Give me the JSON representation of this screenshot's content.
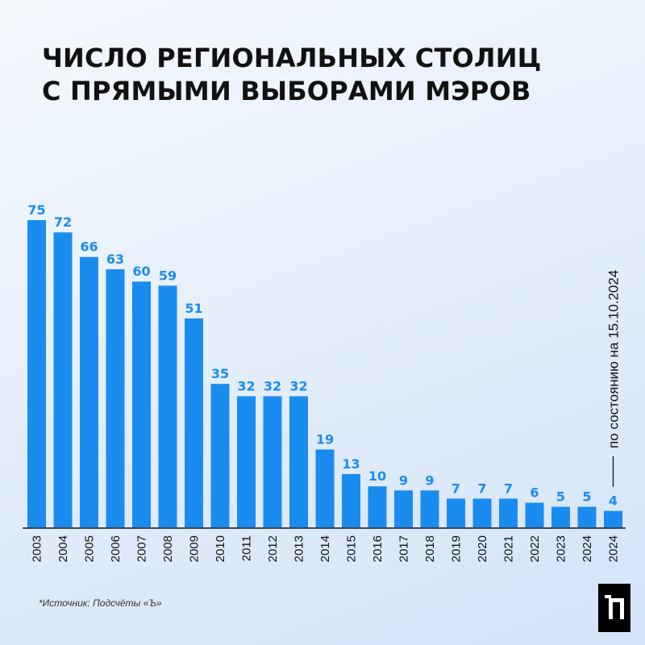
{
  "title_lines": [
    "ЧИСЛО РЕГИОНАЛЬНЫХ СТОЛИЦ",
    "С ПРЯМЫМИ ВЫБОРАМИ МЭРОВ"
  ],
  "source": "*Источник: Подсчёты «Ъ»",
  "colors": {
    "bar": "#1a8cf0",
    "label": "#1a8cf0",
    "axis": "#111111"
  },
  "chart_data": {
    "type": "bar",
    "title": "ЧИСЛО РЕГИОНАЛЬНЫХ СТОЛИЦ С ПРЯМЫМИ ВЫБОРАМИ МЭРОВ",
    "categories": [
      "2003",
      "2004",
      "2005",
      "2006",
      "2007",
      "2008",
      "2009",
      "2010",
      "2011",
      "2012",
      "2013",
      "2014",
      "2015",
      "2016",
      "2017",
      "2018",
      "2019",
      "2020",
      "2021",
      "2022",
      "2023",
      "2024",
      "2024"
    ],
    "values": [
      75,
      72,
      66,
      63,
      60,
      59,
      51,
      35,
      32,
      32,
      32,
      19,
      13,
      10,
      9,
      9,
      7,
      7,
      7,
      6,
      5,
      5,
      4
    ],
    "ylim": [
      0,
      75
    ],
    "annotation": "по состоянию на 15.10.2024",
    "annotation_target": 22,
    "grid": false,
    "legend": "none"
  }
}
